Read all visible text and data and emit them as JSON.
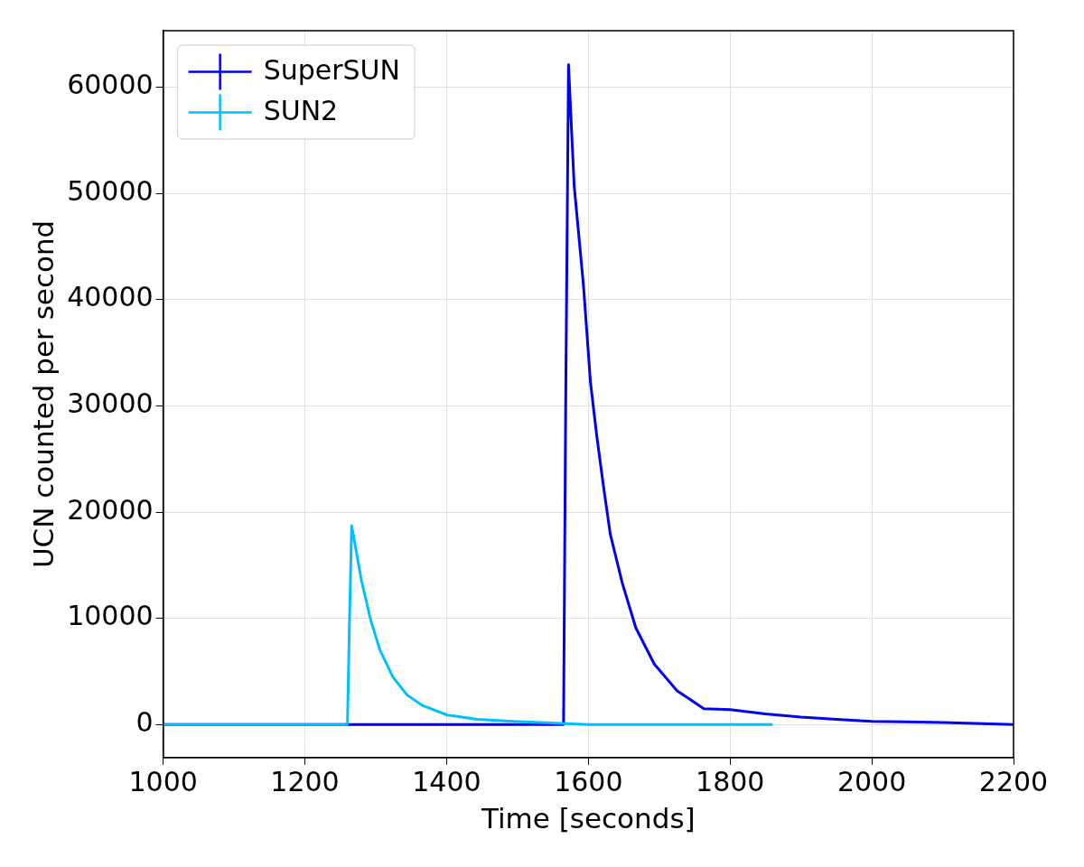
{
  "chart_data": {
    "type": "line",
    "xlabel": "Time [seconds]",
    "ylabel": "UCN counted per second",
    "xlim": [
      1000,
      2200
    ],
    "xticks": [
      1000,
      1200,
      1400,
      1600,
      1800,
      2000,
      2200
    ],
    "ylim": [
      -3100,
      65300
    ],
    "yticks": [
      0,
      10000,
      20000,
      30000,
      40000,
      50000,
      60000
    ],
    "grid": true,
    "legend": "top left",
    "marker": "none",
    "line_style": "solid",
    "series": [
      {
        "name": "SuperSUN",
        "color": "#0000ee",
        "x": [
          1000,
          1200,
          1400,
          1565,
          1568,
          1572,
          1580,
          1593,
          1603,
          1612,
          1622,
          1631,
          1648,
          1667,
          1693,
          1725,
          1763,
          1800,
          1850,
          1900,
          1950,
          2000,
          2100,
          2200
        ],
        "values": [
          0,
          0,
          0,
          0,
          30000,
          62100,
          50700,
          41400,
          32200,
          27100,
          22100,
          17900,
          13300,
          9100,
          5700,
          3200,
          1500,
          1400,
          1000,
          700,
          500,
          300,
          200,
          0
        ]
      },
      {
        "name": "SUN2",
        "color": "#00bfff",
        "x": [
          1000,
          1200,
          1260,
          1263,
          1266,
          1280,
          1293,
          1306,
          1324,
          1344,
          1366,
          1401,
          1443,
          1494,
          1600,
          1700,
          1860
        ],
        "values": [
          0,
          0,
          0,
          10000,
          18700,
          13500,
          9800,
          7000,
          4500,
          2800,
          1800,
          900,
          500,
          300,
          0,
          0,
          0
        ]
      }
    ]
  }
}
